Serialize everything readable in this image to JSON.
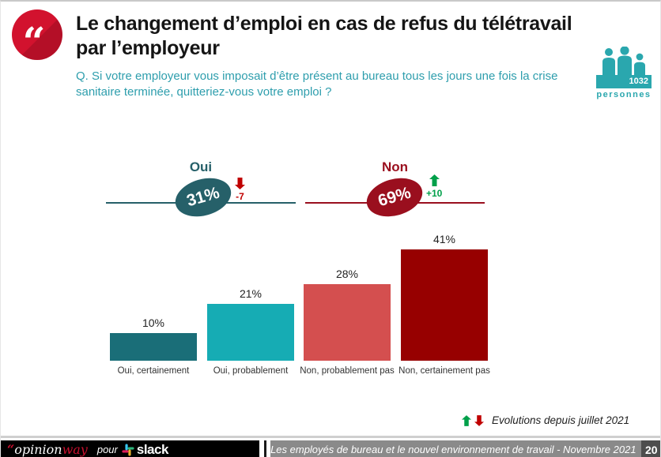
{
  "header": {
    "quote_glyph": "“",
    "title_line1": "Le changement d’emploi en cas de refus du télétravail",
    "title_line2": "par l’employeur",
    "question_line1": "Q. Si votre employeur vous imposait d’être présent au bureau tous les jours une fois la crise",
    "question_line2": "sanitaire terminée, quitteriez-vous votre emploi ?",
    "sample_count": "1032",
    "sample_unit": "personnes"
  },
  "chart_data": {
    "type": "bar",
    "title": "Le changement d’emploi en cas de refus du télétravail par l’employeur",
    "question": "Q. Si votre employeur vous imposait d’être présent au bureau tous les jours une fois la crise sanitaire terminée, quitteriez-vous votre emploi ?",
    "sample_size": 1032,
    "categories": [
      "Oui, certainement",
      "Oui, probablement",
      "Non, probablement pas",
      "Non, certainement pas"
    ],
    "values": [
      10,
      21,
      28,
      41
    ],
    "value_labels": [
      "10%",
      "21%",
      "28%",
      "41%"
    ],
    "bar_colors": [
      "#1A6E78",
      "#16ACB4",
      "#D44F4F",
      "#970000"
    ],
    "ylim": [
      0,
      45
    ],
    "grid": false,
    "groups": [
      {
        "label": "Oui",
        "total": "31%",
        "change": "-7",
        "direction": "down",
        "color": "#266069"
      },
      {
        "label": "Non",
        "total": "69%",
        "change": "+10",
        "direction": "up",
        "color": "#9A0F1E"
      }
    ],
    "legend_note": "Evolutions depuis juillet 2021"
  },
  "legend": {
    "note": "Evolutions depuis juillet 2021"
  },
  "footer": {
    "brand_quote": "“",
    "brand_name_1": "opinion",
    "brand_name_2": "way",
    "connector": "pour",
    "partner_name": "slack",
    "report_title": "Les employés de bureau et le nouvel environnement de travail - Novembre 2021",
    "page_number": "20"
  },
  "colors": {
    "accent_teal": "#2E9EAD",
    "oui_dark_teal": "#266069",
    "non_dark_red": "#9A0F1E",
    "up_green": "#00A04A",
    "down_red": "#C00000",
    "badge_teal": "#2AA7AE",
    "quote_red": "#D2122E"
  }
}
